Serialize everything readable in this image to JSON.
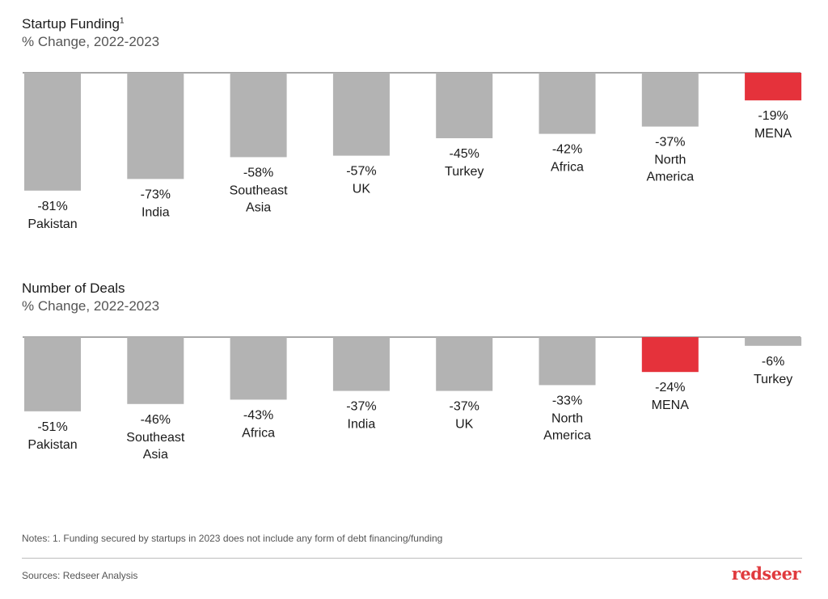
{
  "colors": {
    "bar": "#b3b3b3",
    "highlight": "#e5323b",
    "axis": "#8c8c8c"
  },
  "chart_data": [
    {
      "type": "bar",
      "title": "Startup Funding",
      "title_superscript": "1",
      "subtitle": "% Change, 2022-2023",
      "ylim": [
        -100,
        0
      ],
      "categories": [
        [
          "Pakistan"
        ],
        [
          "India"
        ],
        [
          "Southeast",
          "Asia"
        ],
        [
          "UK"
        ],
        [
          "Turkey"
        ],
        [
          "Africa"
        ],
        [
          "North",
          "America"
        ],
        [
          "MENA"
        ]
      ],
      "values": [
        -81,
        -73,
        -58,
        -57,
        -45,
        -42,
        -37,
        -19
      ],
      "labels": [
        "-81%",
        "-73%",
        "-58%",
        "-57%",
        "-45%",
        "-42%",
        "-37%",
        "-19%"
      ],
      "highlight": "MENA"
    },
    {
      "type": "bar",
      "title": "Number of Deals",
      "subtitle": "% Change, 2022-2023",
      "ylim": [
        -100,
        0
      ],
      "categories": [
        [
          "Pakistan"
        ],
        [
          "Southeast",
          "Asia"
        ],
        [
          "Africa"
        ],
        [
          "India"
        ],
        [
          "UK"
        ],
        [
          "North",
          "America"
        ],
        [
          "MENA"
        ],
        [
          "Turkey"
        ]
      ],
      "values": [
        -51,
        -46,
        -43,
        -37,
        -37,
        -33,
        -24,
        -6
      ],
      "labels": [
        "-51%",
        "-46%",
        "-43%",
        "-37%",
        "-37%",
        "-33%",
        "-24%",
        "-6%"
      ],
      "highlight": "MENA"
    }
  ],
  "footer": {
    "note": "Notes: 1. Funding secured by startups in 2023 does not include any form of debt financing/funding",
    "sources": "Sources: Redseer Analysis",
    "logo": "redseer"
  }
}
